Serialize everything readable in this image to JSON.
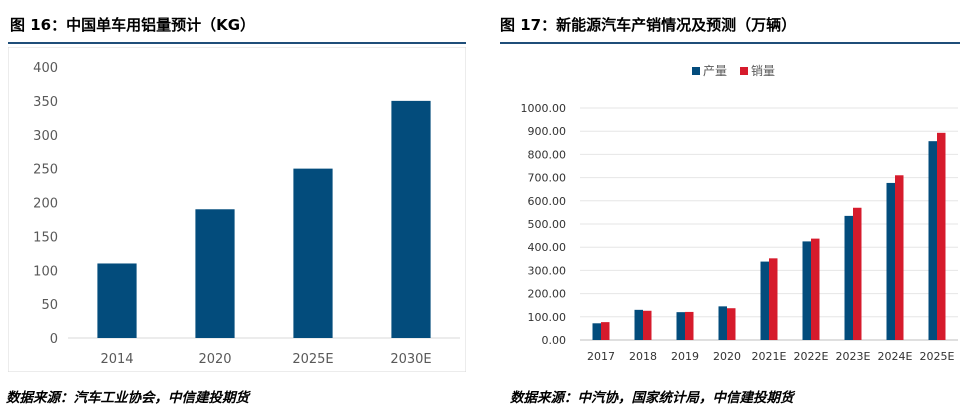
{
  "left": {
    "title": "图 16：中国单车用铝量预计（KG）",
    "source": "数据来源：汽车工业协会，中信建投期货"
  },
  "right": {
    "title": "图 17：新能源汽车产销情况及预测（万辆）",
    "source": "数据来源：中汽协，国家统计局，中信建投期货"
  },
  "chart_data": [
    {
      "type": "bar",
      "title": "中国单车用铝量预计（KG）",
      "categories": [
        "2014",
        "2020",
        "2025E",
        "2030E"
      ],
      "values": [
        110,
        190,
        250,
        350
      ],
      "ylim": [
        0,
        400
      ],
      "yticks": [
        "0",
        "50",
        "100",
        "150",
        "200",
        "250",
        "300",
        "350",
        "400"
      ],
      "xlabel": "",
      "ylabel": "",
      "grid": false,
      "color": "#034C7C"
    },
    {
      "type": "bar",
      "title": "新能源汽车产销情况及预测（万辆）",
      "categories": [
        "2017",
        "2018",
        "2019",
        "2020",
        "2021E",
        "2022E",
        "2023E",
        "2024E",
        "2025E"
      ],
      "series": [
        {
          "name": "产量",
          "color": "#034C7C",
          "values": [
            72,
            130,
            120,
            145,
            338,
            425,
            535,
            677,
            857
          ]
        },
        {
          "name": "销量",
          "color": "#D61B2C",
          "values": [
            77,
            126,
            121,
            137,
            352,
            437,
            570,
            710,
            893
          ]
        }
      ],
      "ylim": [
        0,
        1000
      ],
      "yticks": [
        "0.00",
        "100.00",
        "200.00",
        "300.00",
        "400.00",
        "500.00",
        "600.00",
        "700.00",
        "800.00",
        "900.00",
        "1000.00"
      ],
      "legend": "top-center",
      "xlabel": "",
      "ylabel": "",
      "grid": true
    }
  ]
}
